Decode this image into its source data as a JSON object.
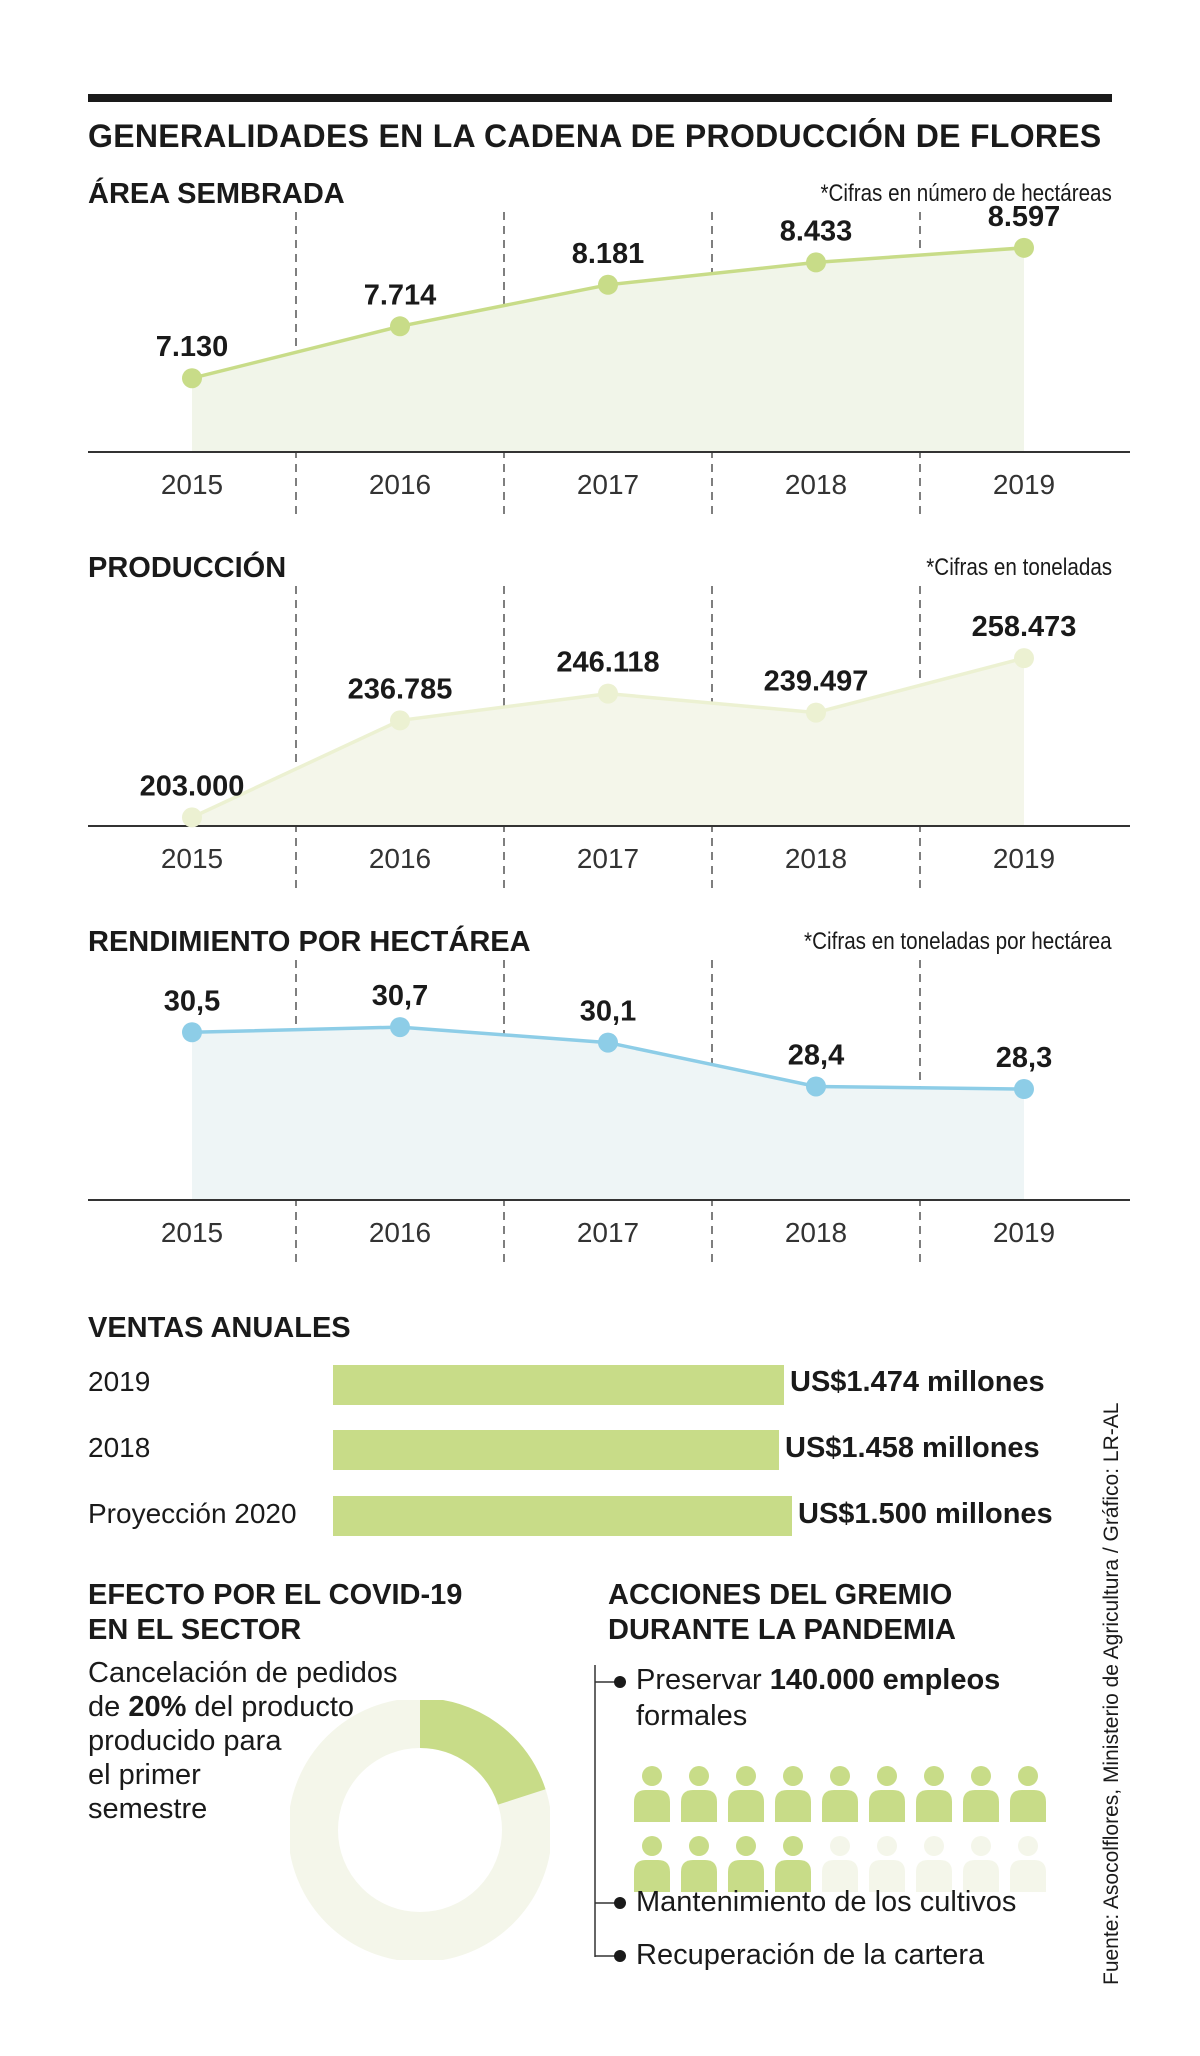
{
  "title": "GENERALIDADES EN LA CADENA DE PRODUCCIÓN DE FLORES",
  "charts": [
    {
      "key": "area",
      "title": "ÁREA SEMBRADA",
      "note": "*Cifras en número de hectáreas",
      "color": "#c8dc88",
      "fill": "#f1f5e9",
      "labels": [
        "7.130",
        "7.714",
        "8.181",
        "8.433",
        "8.597"
      ],
      "ymin": 6300,
      "ymax": 9000
    },
    {
      "key": "produccion",
      "title": "PRODUCCIÓN",
      "note": "*Cifras en toneladas",
      "color": "#ecf1d2",
      "fill": "#f4f6ea",
      "labels": [
        "203.000",
        "236.785",
        "246.118",
        "239.497",
        "258.473"
      ],
      "ymin": 200000,
      "ymax": 283600
    },
    {
      "key": "rendimiento",
      "title": "RENDIMIENTO POR HECTÁREA",
      "note": "*Cifras en toneladas por hectárea",
      "color": "#8dcde7",
      "fill": "#eef5f6",
      "labels": [
        "30,5",
        "30,7",
        "30,1",
        "28,4",
        "28,3"
      ],
      "ymin": 24.0,
      "ymax": 33.3
    }
  ],
  "chart_data": [
    {
      "type": "line",
      "title": "ÁREA SEMBRADA",
      "categories": [
        "2015",
        "2016",
        "2017",
        "2018",
        "2019"
      ],
      "values": [
        7130,
        7714,
        8181,
        8433,
        8597
      ]
    },
    {
      "type": "line",
      "title": "PRODUCCIÓN",
      "categories": [
        "2015",
        "2016",
        "2017",
        "2018",
        "2019"
      ],
      "values": [
        203000,
        236785,
        246118,
        239497,
        258473
      ]
    },
    {
      "type": "line",
      "title": "RENDIMIENTO POR HECTÁREA",
      "categories": [
        "2015",
        "2016",
        "2017",
        "2018",
        "2019"
      ],
      "values": [
        30.5,
        30.7,
        30.1,
        28.4,
        28.3
      ]
    },
    {
      "type": "bar",
      "title": "VENTAS ANUALES",
      "categories": [
        "2019",
        "2018",
        "Proyección 2020"
      ],
      "values": [
        1474,
        1458,
        1500
      ],
      "value_labels": [
        "US$1.474 millones",
        "US$1.458 millones",
        "US$1.500 millones"
      ],
      "color": "#c8dc88"
    },
    {
      "type": "pie",
      "title": "EFECTO POR EL COVID-19 EN EL SECTOR",
      "values": [
        20,
        80
      ],
      "colors": [
        "#c8dc88",
        "#f4f6ea"
      ]
    }
  ],
  "ventas": {
    "title": "VENTAS ANUALES",
    "bars": [
      {
        "label": "2019",
        "value": 1474,
        "text": "US$1.474 millones"
      },
      {
        "label": "2018",
        "value": 1458,
        "text": "US$1.458 millones"
      },
      {
        "label": "Proyección 2020",
        "value": 1500,
        "text": "US$1.500 millones"
      }
    ]
  },
  "covid": {
    "title_line1": "EFECTO POR EL COVID-19",
    "title_line2": "EN EL SECTOR",
    "line1": "Cancelación de pedidos",
    "line2_pre": "de ",
    "line2_bold": "20%",
    "line2_post": " del producto",
    "line3": "producido para",
    "line4": "el primer",
    "line5": "semestre",
    "percent": 20
  },
  "acciones": {
    "title_line1": "ACCIONES DEL GREMIO",
    "title_line2": "DURANTE LA PANDEMIA",
    "item1_pre": "Preservar ",
    "item1_bold": "140.000 empleos",
    "item1_line2": "formales",
    "item2": "Mantenimiento de los cultivos",
    "item3": "Recuperación de la cartera",
    "people_total": 18,
    "people_filled": 13,
    "colors": {
      "filled": "#c8dc88",
      "empty": "#f4f6ea"
    }
  },
  "source": "Fuente: Asocolflores, Ministerio de Agricultura  / Gráfico: LR-AL"
}
